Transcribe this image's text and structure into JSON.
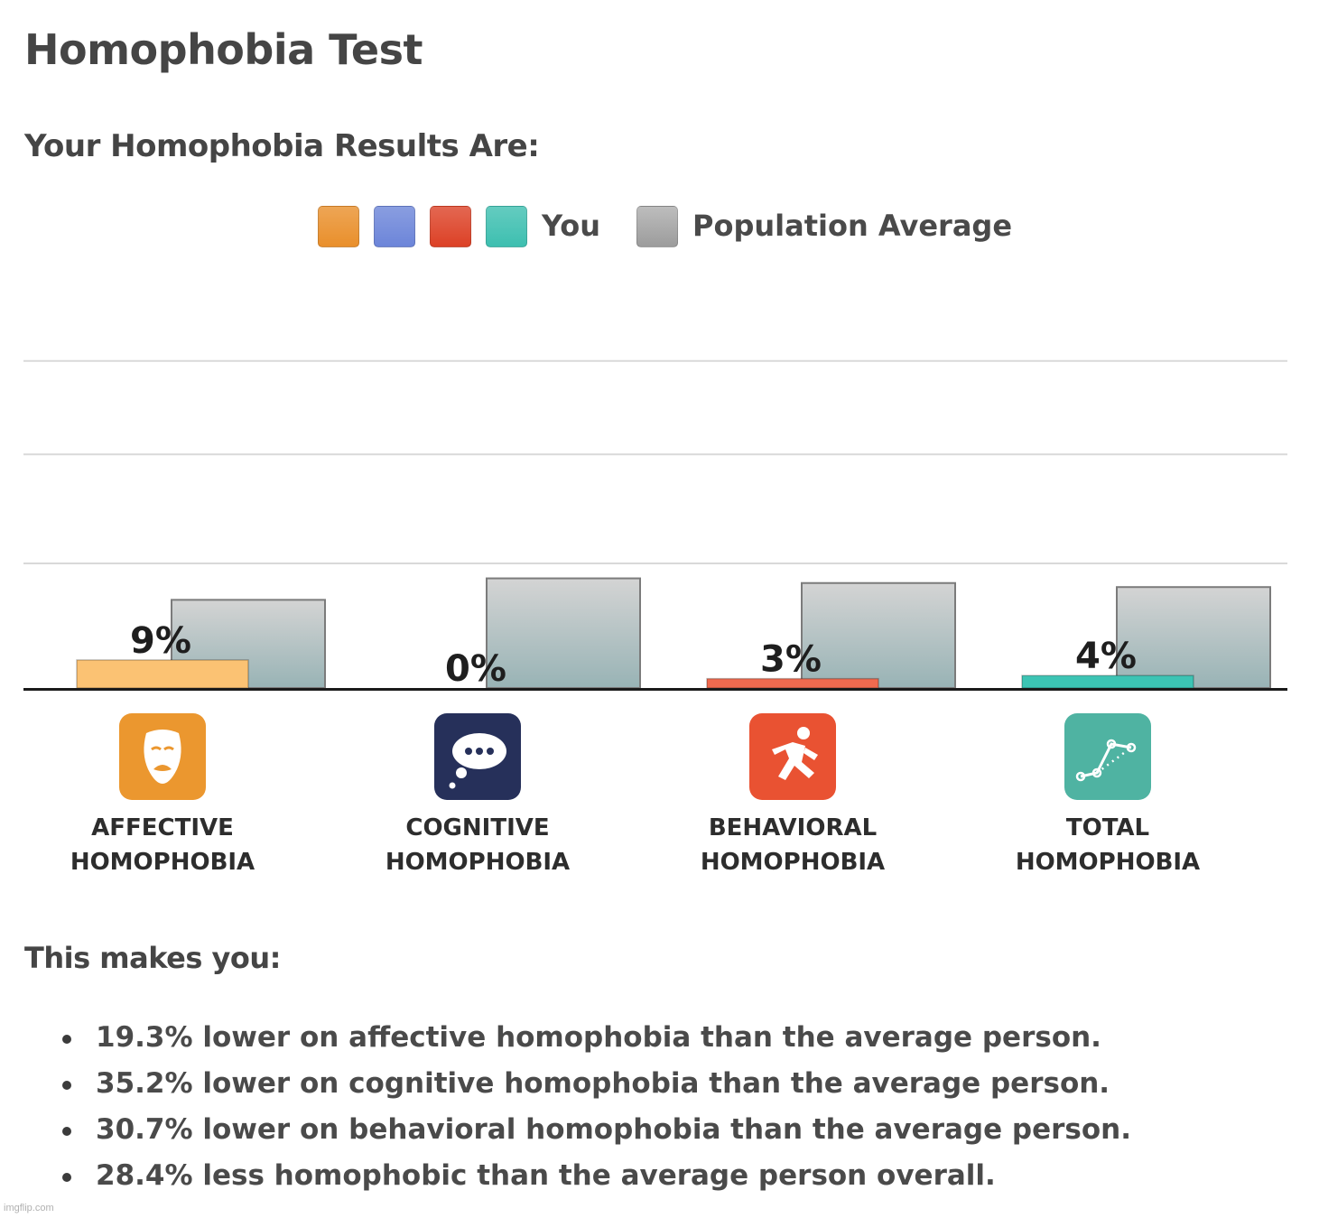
{
  "page": {
    "title": "Homophobia Test",
    "results_heading": "Your Homophobia Results Are:",
    "makes_heading": "This makes you:",
    "watermark": "imgflip.com"
  },
  "legend": {
    "you_label": "You",
    "average_label": "Population Average",
    "you_colors": [
      "#e98f2b",
      "#6c85d9",
      "#dc4126",
      "#3dbfb0"
    ],
    "average_color": "#9c9c9c"
  },
  "chart_data": {
    "type": "bar",
    "categories": [
      "AFFECTIVE HOMOPHOBIA",
      "COGNITIVE HOMOPHOBIA",
      "BEHAVIORAL HOMOPHOBIA",
      "TOTAL HOMOPHOBIA"
    ],
    "series": [
      {
        "name": "You",
        "values": [
          9,
          0,
          3,
          4
        ],
        "labels": [
          "9%",
          "0%",
          "3%",
          "4%"
        ],
        "colors": [
          "#fbc273",
          "#6c85d9",
          "#f06a4f",
          "#3cc4b4"
        ]
      },
      {
        "name": "Population Average",
        "values": [
          28.3,
          35.2,
          33.7,
          32.4
        ]
      }
    ],
    "ylim": [
      0,
      100
    ],
    "grid": true,
    "legend_position": "top-center",
    "category_icons": [
      "theater-mask-icon",
      "thought-bubble-icon",
      "running-person-icon",
      "line-graph-icon"
    ],
    "icon_colors": [
      "#eb972f",
      "#26305a",
      "#e95232",
      "#4fb3a2"
    ]
  },
  "summary": [
    "19.3% lower on affective homophobia than the average person.",
    "35.2% lower on cognitive homophobia than the average person.",
    "30.7% lower on behavioral homophobia than the average person.",
    "28.4% less homophobic than the average person overall."
  ]
}
